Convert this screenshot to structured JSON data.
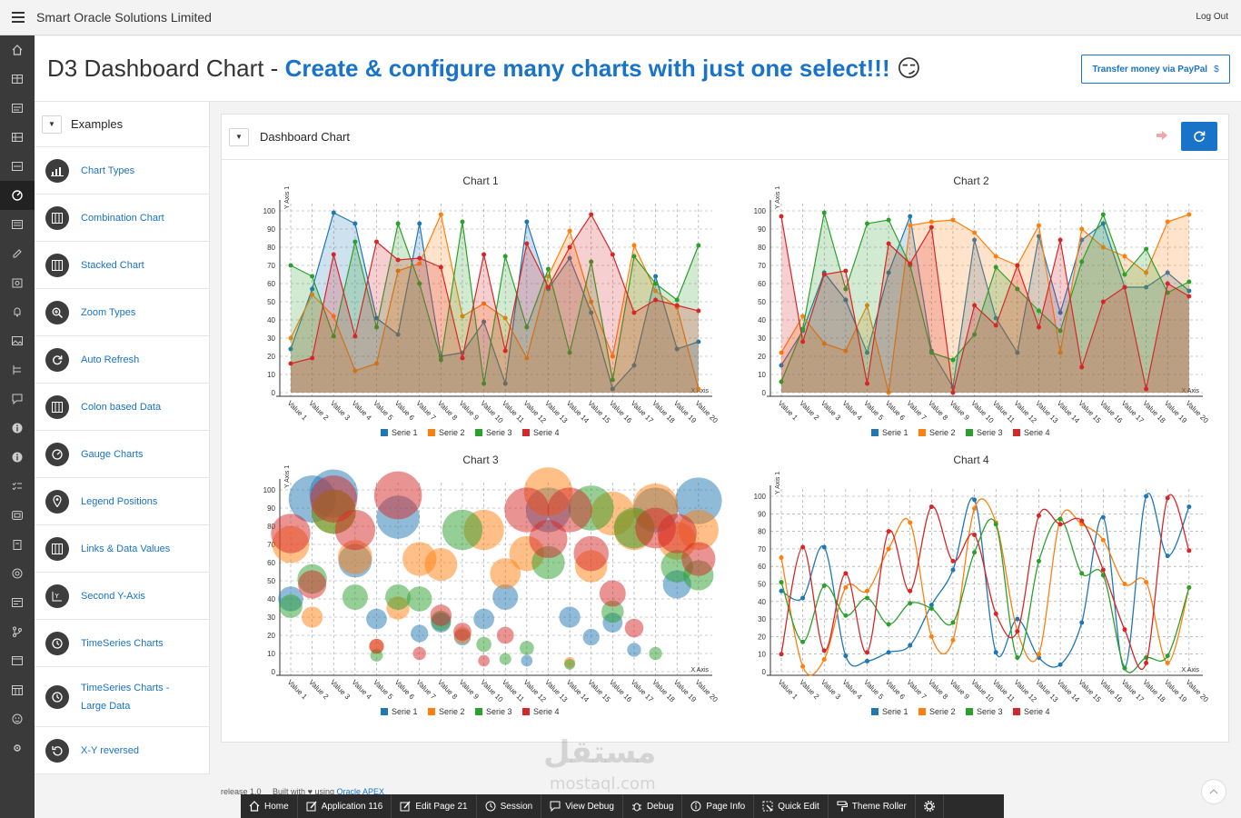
{
  "app": {
    "title": "Smart Oracle Solutions Limited",
    "logout": "Log Out"
  },
  "header": {
    "title_plain": "D3 Dashboard Chart - ",
    "title_accent": "Create & configure many charts with just one select!!!",
    "emoji": "😏",
    "paypal_label": "Transfer money via PayPal",
    "paypal_icon": "$"
  },
  "sidebar": {
    "heading": "Examples",
    "items": [
      {
        "label": "Chart Types",
        "icon": "chart-types-icon"
      },
      {
        "label": "Combination Chart",
        "icon": "combination-icon"
      },
      {
        "label": "Stacked Chart",
        "icon": "stacked-icon"
      },
      {
        "label": "Zoom Types",
        "icon": "zoom-icon"
      },
      {
        "label": "Auto Refresh",
        "icon": "refresh-icon"
      },
      {
        "label": "Colon based Data",
        "icon": "columns-icon"
      },
      {
        "label": "Gauge Charts",
        "icon": "gauge-icon"
      },
      {
        "label": "Legend Positions",
        "icon": "location-pin-icon"
      },
      {
        "label": "Links & Data Values",
        "icon": "columns-icon"
      },
      {
        "label": "Second Y-Axis",
        "icon": "y-axis-icon"
      },
      {
        "label": "TimeSeries Charts",
        "icon": "clock-icon"
      },
      {
        "label": "TimeSeries Charts - Large Data",
        "icon": "clock-icon"
      },
      {
        "label": "X-Y reversed",
        "icon": "undo-icon"
      }
    ]
  },
  "main": {
    "heading": "Dashboard Chart"
  },
  "colors": {
    "serie1": "#1f77b4",
    "serie2": "#ff7f0e",
    "serie3": "#2ca02c",
    "serie4": "#d62728",
    "accent": "#1873c9"
  },
  "chart_data": [
    {
      "type": "area",
      "title": "Chart 1",
      "xlabel": "X Axis",
      "ylabel": "Y Axis 1",
      "ylim": [
        0,
        100
      ],
      "grid": true,
      "legend": "bottom",
      "categories": [
        "Value 1",
        "Value 2",
        "Value 3",
        "Value 4",
        "Value 5",
        "Value 6",
        "Value 7",
        "Value 8",
        "Value 9",
        "Value 10",
        "Value 11",
        "Value 12",
        "Value 13",
        "Value 14",
        "Value 15",
        "Value 16",
        "Value 17",
        "Value 18",
        "Value 19",
        "Value 20"
      ],
      "series": [
        {
          "name": "Serie 1",
          "values": [
            24,
            57,
            99,
            93,
            41,
            32,
            93,
            20,
            22,
            39,
            5,
            94,
            57,
            74,
            44,
            2,
            15,
            64,
            24,
            28
          ]
        },
        {
          "name": "Serie 2",
          "values": [
            30,
            54,
            42,
            12,
            16,
            67,
            71,
            98,
            42,
            49,
            41,
            19,
            64,
            89,
            50,
            20,
            81,
            56,
            47,
            2
          ]
        },
        {
          "name": "Serie 3",
          "values": [
            70,
            64,
            31,
            83,
            36,
            93,
            60,
            18,
            94,
            5,
            75,
            36,
            68,
            22,
            72,
            7,
            75,
            60,
            51,
            81
          ]
        },
        {
          "name": "Serie 4",
          "values": [
            16,
            19,
            76,
            31,
            83,
            73,
            74,
            69,
            19,
            76,
            23,
            82,
            58,
            80,
            98,
            76,
            44,
            51,
            48,
            45
          ]
        }
      ]
    },
    {
      "type": "area",
      "title": "Chart 2",
      "xlabel": "X Axis",
      "ylabel": "Y Axis 1",
      "ylim": [
        0,
        100
      ],
      "grid": true,
      "legend": "bottom",
      "categories": [
        "Value 1",
        "Value 2",
        "Value 3",
        "Value 4",
        "Value 5",
        "Value 6",
        "Value 7",
        "Value 8",
        "Value 9",
        "Value 10",
        "Value 11",
        "Value 12",
        "Value 13",
        "Value 14",
        "Value 15",
        "Value 16",
        "Value 17",
        "Value 18",
        "Value 19",
        "Value 20"
      ],
      "series": [
        {
          "name": "Serie 1",
          "values": [
            15,
            34,
            66,
            51,
            22,
            66,
            97,
            23,
            3,
            84,
            41,
            22,
            86,
            44,
            84,
            93,
            58,
            58,
            66,
            56
          ]
        },
        {
          "name": "Serie 2",
          "values": [
            22,
            42,
            27,
            23,
            48,
            0,
            92,
            94,
            95,
            88,
            75,
            70,
            92,
            22,
            90,
            80,
            75,
            66,
            94,
            98
          ]
        },
        {
          "name": "Serie 3",
          "values": [
            6,
            35,
            99,
            57,
            93,
            95,
            70,
            22,
            18,
            32,
            69,
            57,
            45,
            34,
            72,
            98,
            65,
            79,
            55,
            61
          ]
        },
        {
          "name": "Serie 4",
          "values": [
            97,
            28,
            65,
            67,
            5,
            82,
            71,
            91,
            0,
            48,
            37,
            70,
            36,
            84,
            14,
            50,
            58,
            2,
            60,
            53
          ]
        }
      ]
    },
    {
      "type": "scatter",
      "title": "Chart 3",
      "xlabel": "X Axis",
      "ylabel": "Y Axis 1",
      "ylim": [
        0,
        100
      ],
      "grid": true,
      "legend": "bottom",
      "categories": [
        "Value 1",
        "Value 2",
        "Value 3",
        "Value 4",
        "Value 5",
        "Value 6",
        "Value 7",
        "Value 8",
        "Value 9",
        "Value 10",
        "Value 11",
        "Value 12",
        "Value 13",
        "Value 14",
        "Value 15",
        "Value 16",
        "Value 17",
        "Value 18",
        "Value 19",
        "Value 20"
      ],
      "series": [
        {
          "name": "Serie 1",
          "values": [
            40,
            95,
            98,
            61,
            29,
            85,
            21,
            27,
            19,
            29,
            41,
            6,
            89,
            30,
            19,
            27,
            12,
            89,
            48,
            94
          ]
        },
        {
          "name": "Serie 2",
          "values": [
            70,
            30,
            88,
            63,
            14,
            35,
            62,
            59,
            20,
            78,
            54,
            65,
            99,
            5,
            58,
            87,
            78,
            91,
            72,
            78
          ]
        },
        {
          "name": "Serie 3",
          "values": [
            36,
            51,
            88,
            41,
            9,
            41,
            40,
            28,
            78,
            15,
            7,
            13,
            60,
            4,
            90,
            33,
            79,
            10,
            58,
            53
          ]
        },
        {
          "name": "Serie 4",
          "values": [
            76,
            48,
            95,
            78,
            14,
            97,
            10,
            31,
            22,
            6,
            20,
            89,
            73,
            89,
            65,
            43,
            24,
            79,
            76,
            62
          ]
        }
      ]
    },
    {
      "type": "line",
      "title": "Chart 4",
      "xlabel": "X Axis",
      "ylabel": "Y Axis 1",
      "ylim": [
        0,
        100
      ],
      "grid": true,
      "legend": "bottom",
      "categories": [
        "Value 1",
        "Value 2",
        "Value 3",
        "Value 4",
        "Value 5",
        "Value 6",
        "Value 7",
        "Value 8",
        "Value 9",
        "Value 10",
        "Value 11",
        "Value 12",
        "Value 13",
        "Value 14",
        "Value 15",
        "Value 16",
        "Value 17",
        "Value 18",
        "Value 19",
        "Value 20"
      ],
      "series": [
        {
          "name": "Serie 1",
          "values": [
            46,
            42,
            71,
            9,
            6,
            11,
            15,
            38,
            58,
            98,
            11,
            30,
            8,
            4,
            28,
            88,
            2,
            100,
            66,
            94
          ]
        },
        {
          "name": "Serie 2",
          "values": [
            65,
            3,
            7,
            48,
            46,
            70,
            85,
            20,
            18,
            93,
            85,
            23,
            10,
            87,
            84,
            75,
            50,
            51,
            5,
            48
          ]
        },
        {
          "name": "Serie 3",
          "values": [
            51,
            17,
            49,
            32,
            42,
            27,
            39,
            36,
            28,
            68,
            84,
            8,
            63,
            87,
            56,
            55,
            2,
            8,
            9,
            48
          ]
        },
        {
          "name": "Serie 4",
          "values": [
            10,
            71,
            12,
            56,
            11,
            80,
            46,
            94,
            63,
            78,
            33,
            23,
            89,
            84,
            86,
            58,
            24,
            5,
            99,
            69
          ]
        }
      ]
    }
  ],
  "footer": {
    "release": "release 1.0",
    "built_with": "Built with",
    "using": "using",
    "link": "Oracle APEX"
  },
  "devbar": [
    {
      "label": "Home",
      "icon": "home-icon"
    },
    {
      "label": "Application 116",
      "icon": "edit-icon"
    },
    {
      "label": "Edit Page 21",
      "icon": "edit-icon"
    },
    {
      "label": "Session",
      "icon": "clock-icon"
    },
    {
      "label": "View Debug",
      "icon": "view-debug-icon"
    },
    {
      "label": "Debug",
      "icon": "bug-icon"
    },
    {
      "label": "Page Info",
      "icon": "info-icon"
    },
    {
      "label": "Quick Edit",
      "icon": "quick-edit-icon"
    },
    {
      "label": "Theme Roller",
      "icon": "paint-roller-icon"
    }
  ],
  "watermark": {
    "ar": "مستقل",
    "en": "mostaql.com"
  }
}
